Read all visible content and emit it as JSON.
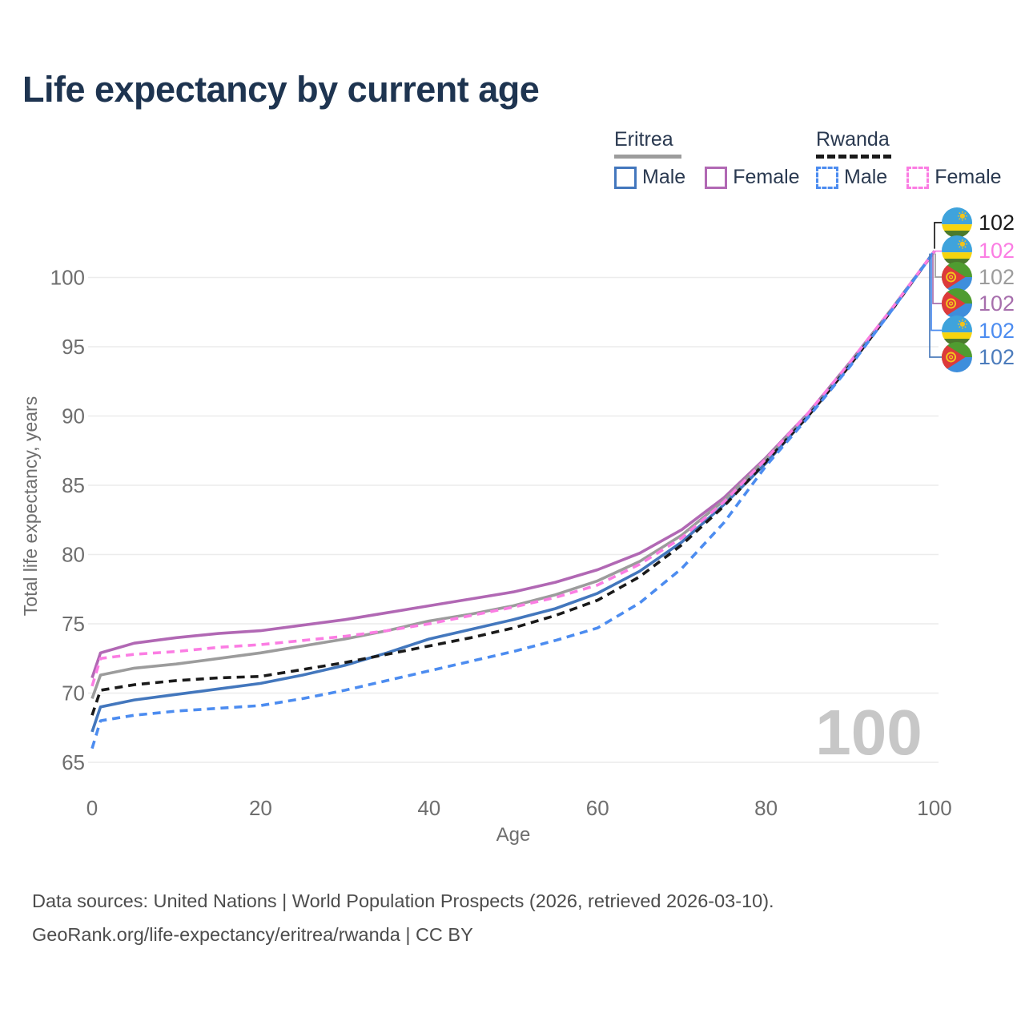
{
  "title": "Life expectancy by current age",
  "legend": {
    "groups": [
      {
        "label": "Eritrea",
        "line_style": "solid",
        "underline_color": "#9C9C9C",
        "items": [
          {
            "label": "Male",
            "color": "#4377BD",
            "dashed": false
          },
          {
            "label": "Female",
            "color": "#B168B4",
            "dashed": false
          }
        ]
      },
      {
        "label": "Rwanda",
        "line_style": "dashed",
        "underline_color": "#1A1A1A",
        "items": [
          {
            "label": "Male",
            "color": "#4C8CF0",
            "dashed": true
          },
          {
            "label": "Female",
            "color": "#FB7DE3",
            "dashed": true
          }
        ]
      }
    ]
  },
  "chart_data": {
    "type": "line",
    "title": "Life expectancy by current age",
    "xlabel": "Age",
    "ylabel": "Total life expectancy, years",
    "x_ticks": [
      0,
      20,
      40,
      60,
      80,
      100
    ],
    "y_ticks": [
      65,
      70,
      75,
      80,
      85,
      90,
      95,
      100
    ],
    "xlim": [
      0,
      100
    ],
    "ylim": [
      65,
      102
    ],
    "grid": "horizontal",
    "legend_position": "top-right",
    "watermark": "100",
    "watermark_color": "#C7C7C7",
    "grid_color": "#ECECEC",
    "axis_text_color": "#6E6E6E",
    "ages": [
      0,
      1,
      5,
      10,
      15,
      20,
      25,
      30,
      35,
      40,
      45,
      50,
      55,
      60,
      65,
      70,
      75,
      80,
      85,
      90,
      95,
      100
    ],
    "series": [
      {
        "name": "Eritrea Female",
        "country": "Eritrea",
        "sex": "Female",
        "style": "solid",
        "color": "#B168B4",
        "values": [
          71.1,
          72.9,
          73.6,
          74.0,
          74.3,
          74.5,
          74.9,
          75.3,
          75.8,
          76.3,
          76.8,
          77.3,
          78.0,
          78.9,
          80.1,
          81.8,
          84.1,
          87.0,
          90.2,
          93.9,
          97.8,
          101.9
        ]
      },
      {
        "name": "Eritrea Both sexes",
        "country": "Eritrea",
        "sex": "Both",
        "style": "solid",
        "color": "#9C9C9C",
        "values": [
          69.6,
          71.3,
          71.8,
          72.1,
          72.5,
          72.9,
          73.4,
          73.9,
          74.5,
          75.2,
          75.7,
          76.3,
          77.1,
          78.1,
          79.5,
          81.4,
          83.9,
          86.9,
          90.1,
          93.8,
          97.8,
          101.9
        ]
      },
      {
        "name": "Eritrea Male",
        "country": "Eritrea",
        "sex": "Male",
        "style": "solid",
        "color": "#4377BD",
        "values": [
          67.2,
          69.0,
          69.5,
          69.9,
          70.3,
          70.7,
          71.3,
          72.0,
          72.9,
          73.9,
          74.6,
          75.3,
          76.1,
          77.2,
          78.8,
          80.9,
          83.6,
          86.6,
          90.0,
          93.7,
          97.7,
          101.9
        ]
      },
      {
        "name": "Rwanda Both sexes",
        "country": "Rwanda",
        "sex": "Both",
        "style": "dashed",
        "color": "#1A1A1A",
        "values": [
          68.4,
          70.2,
          70.6,
          70.9,
          71.1,
          71.2,
          71.7,
          72.2,
          72.8,
          73.4,
          74.0,
          74.7,
          75.6,
          76.7,
          78.4,
          80.7,
          83.5,
          86.7,
          90.0,
          93.7,
          97.7,
          101.9
        ]
      },
      {
        "name": "Rwanda Female",
        "country": "Rwanda",
        "sex": "Female",
        "style": "dashed",
        "color": "#FB7DE3",
        "values": [
          70.5,
          72.5,
          72.8,
          73.0,
          73.3,
          73.5,
          73.8,
          74.1,
          74.5,
          75.0,
          75.6,
          76.2,
          76.9,
          77.8,
          79.3,
          81.2,
          83.8,
          86.9,
          90.2,
          93.9,
          97.8,
          101.9
        ]
      },
      {
        "name": "Rwanda Male",
        "country": "Rwanda",
        "sex": "Male",
        "style": "dashed",
        "color": "#4C8CF0",
        "values": [
          66.0,
          68.0,
          68.4,
          68.7,
          68.9,
          69.1,
          69.6,
          70.2,
          70.9,
          71.6,
          72.3,
          73.0,
          73.8,
          74.7,
          76.5,
          79.0,
          82.3,
          86.4,
          89.9,
          93.6,
          97.7,
          101.9
        ]
      }
    ],
    "end_labels": [
      {
        "flag": "rwanda",
        "value": "102",
        "color": "#1A1A1A",
        "series": "Rwanda Both sexes"
      },
      {
        "flag": "rwanda",
        "value": "102",
        "color": "#FB7DE3",
        "series": "Rwanda Female"
      },
      {
        "flag": "eritrea",
        "value": "102",
        "color": "#9C9C9C",
        "series": "Eritrea Both sexes"
      },
      {
        "flag": "eritrea",
        "value": "102",
        "color": "#A76FAD",
        "series": "Eritrea Female"
      },
      {
        "flag": "rwanda",
        "value": "102",
        "color": "#4C8CF0",
        "series": "Rwanda Male"
      },
      {
        "flag": "eritrea",
        "value": "102",
        "color": "#4C7CBC",
        "series": "Eritrea Male"
      }
    ]
  },
  "footer": {
    "line1": "Data sources: United Nations | World Population Prospects (2026, retrieved 2026-03-10).",
    "line2": "GeoRank.org/life-expectancy/eritrea/rwanda | CC BY"
  }
}
